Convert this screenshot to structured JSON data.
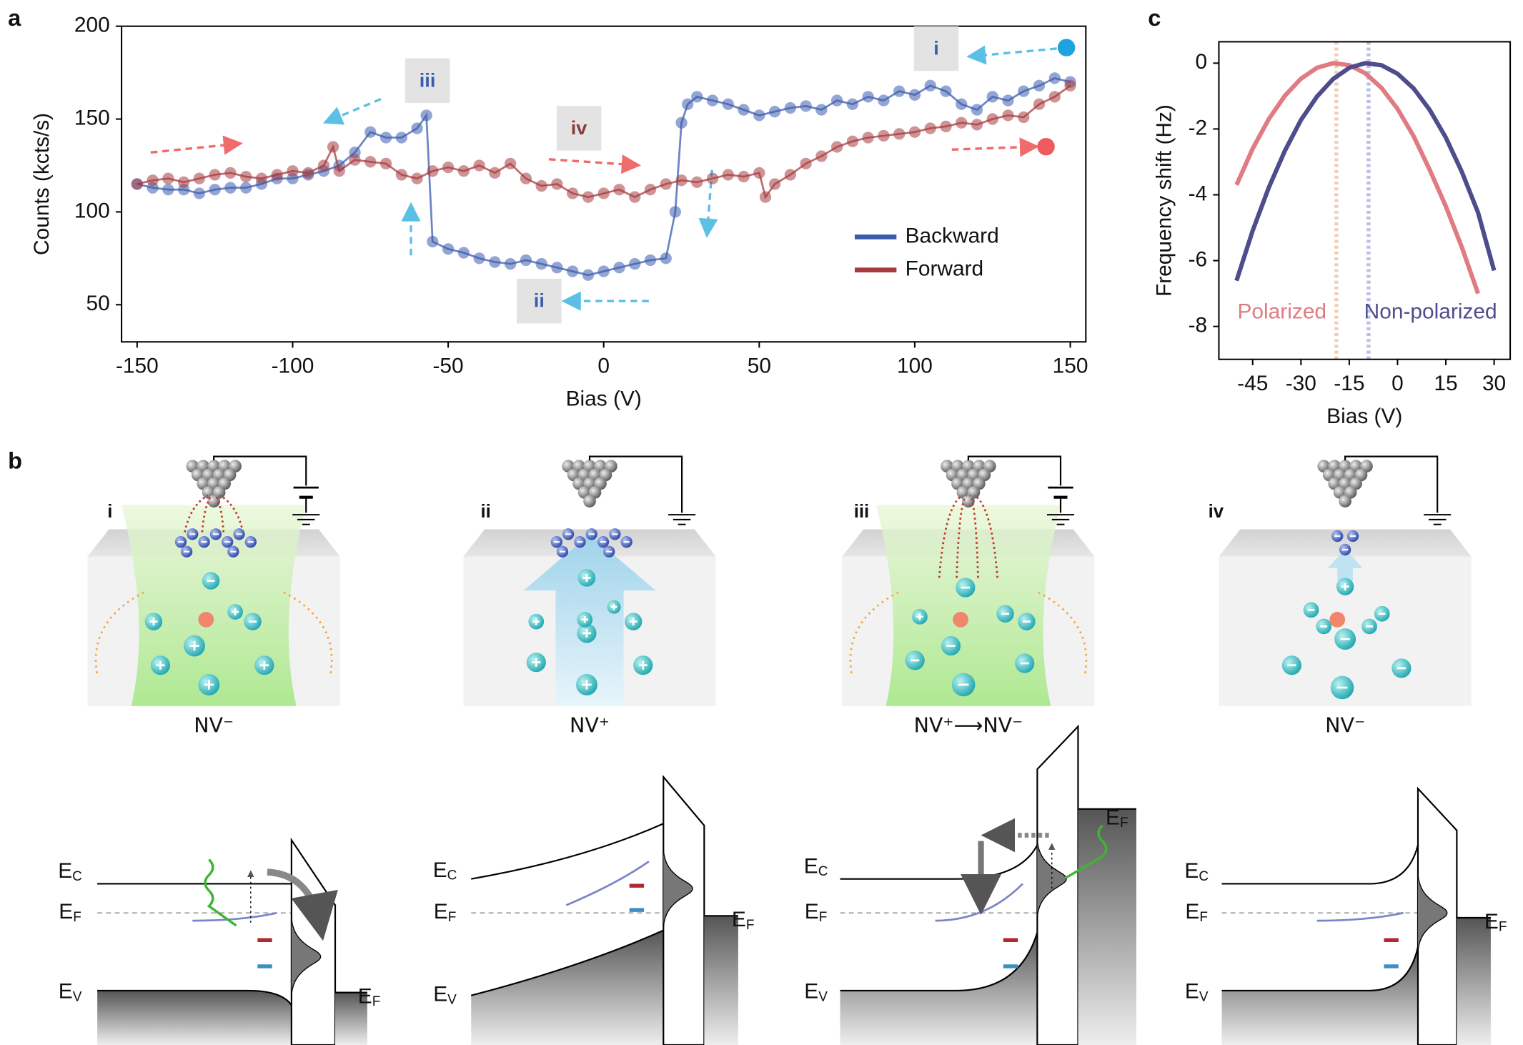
{
  "panels": {
    "a": "a",
    "b": "b",
    "c": "c"
  },
  "chart_data": [
    {
      "type": "line",
      "xlabel": "Bias (V)",
      "ylabel": "Counts (kcts/s)",
      "xlim": [
        -155,
        155
      ],
      "xticks": [
        -150,
        -100,
        -50,
        0,
        50,
        100,
        150
      ],
      "ylim": [
        30,
        200
      ],
      "yticks": [
        50,
        100,
        150,
        200
      ],
      "markers": true,
      "legend": "lower right",
      "annotations": [
        "i",
        "ii",
        "iii",
        "iv"
      ],
      "series": [
        {
          "name": "Backward",
          "color": "#3b5bad",
          "x": [
            150,
            145,
            140,
            135,
            130,
            125,
            120,
            115,
            110,
            105,
            100,
            95,
            90,
            85,
            80,
            75,
            70,
            65,
            60,
            55,
            50,
            45,
            40,
            35,
            30,
            27,
            25,
            23,
            20,
            15,
            10,
            5,
            0,
            -5,
            -10,
            -15,
            -20,
            -25,
            -30,
            -35,
            -40,
            -45,
            -50,
            -55,
            -57,
            -60,
            -65,
            -70,
            -75,
            -80,
            -85,
            -90,
            -95,
            -100,
            -105,
            -110,
            -115,
            -120,
            -125,
            -130,
            -135,
            -140,
            -145,
            -150
          ],
          "values": [
            170,
            172,
            168,
            165,
            160,
            162,
            155,
            158,
            165,
            168,
            163,
            165,
            160,
            162,
            158,
            160,
            155,
            157,
            156,
            154,
            152,
            155,
            158,
            160,
            162,
            158,
            148,
            100,
            75,
            74,
            72,
            70,
            68,
            66,
            68,
            70,
            72,
            74,
            72,
            73,
            75,
            78,
            80,
            84,
            152,
            145,
            140,
            140,
            143,
            132,
            125,
            122,
            120,
            118,
            118,
            115,
            113,
            113,
            112,
            110,
            112,
            112,
            113,
            115
          ]
        },
        {
          "name": "Forward",
          "color": "#a63a3e",
          "x": [
            -150,
            -145,
            -140,
            -135,
            -130,
            -125,
            -120,
            -115,
            -110,
            -105,
            -100,
            -95,
            -90,
            -87,
            -85,
            -80,
            -75,
            -70,
            -65,
            -60,
            -55,
            -50,
            -45,
            -40,
            -35,
            -30,
            -25,
            -20,
            -15,
            -10,
            -5,
            0,
            5,
            10,
            15,
            20,
            25,
            30,
            35,
            40,
            45,
            50,
            52,
            55,
            60,
            65,
            70,
            75,
            80,
            85,
            90,
            95,
            100,
            105,
            110,
            115,
            120,
            125,
            130,
            135,
            140,
            145,
            150
          ],
          "values": [
            115,
            117,
            118,
            116,
            118,
            120,
            121,
            119,
            118,
            120,
            122,
            121,
            125,
            135,
            122,
            128,
            127,
            126,
            120,
            118,
            122,
            124,
            122,
            125,
            121,
            126,
            118,
            114,
            115,
            110,
            108,
            110,
            112,
            108,
            112,
            115,
            117,
            116,
            118,
            120,
            119,
            121,
            108,
            115,
            120,
            126,
            130,
            135,
            138,
            140,
            141,
            142,
            143,
            145,
            146,
            148,
            147,
            150,
            152,
            151,
            158,
            162,
            168
          ]
        }
      ]
    },
    {
      "type": "line",
      "xlabel": "Bias (V)",
      "ylabel": "Frequency shift (Hz)",
      "xlim": [
        -55.5,
        35
      ],
      "xticks": [
        -45,
        -30,
        -15,
        0,
        15,
        30
      ],
      "ylim": [
        -9,
        0.65
      ],
      "yticks": [
        0,
        -2,
        -4,
        -6,
        -8
      ],
      "markers": false,
      "legend": "bottom",
      "vlines": [
        {
          "value": -19,
          "color": "#f2cdb5"
        },
        {
          "value": -9,
          "color": "#bcbce6"
        }
      ],
      "series": [
        {
          "name": "Polarized",
          "color": "#e07b82",
          "x": [
            -50,
            -45,
            -40,
            -35,
            -30,
            -25,
            -20,
            -15,
            -10,
            -5,
            0,
            5,
            10,
            15,
            20,
            25
          ],
          "values": [
            -3.7,
            -2.6,
            -1.7,
            -0.99,
            -0.47,
            -0.14,
            0,
            -0.06,
            -0.31,
            -0.75,
            -1.39,
            -2.22,
            -3.24,
            -4.35,
            -5.6,
            -7.0
          ]
        },
        {
          "name": "Non-polarized",
          "color": "#4d4d8c",
          "x": [
            -50,
            -45,
            -40,
            -35,
            -30,
            -25,
            -20,
            -15,
            -10,
            -5,
            0,
            5,
            10,
            15,
            20,
            25,
            30
          ],
          "values": [
            -6.61,
            -5.09,
            -3.78,
            -2.66,
            -1.73,
            -1.01,
            -0.48,
            -0.14,
            0,
            -0.06,
            -0.32,
            -0.77,
            -1.42,
            -2.26,
            -3.31,
            -4.54,
            -6.3
          ]
        }
      ]
    }
  ],
  "panel_b": {
    "columns": [
      {
        "roman": "i",
        "state": "NV⁻"
      },
      {
        "roman": "ii",
        "state": "NV⁺"
      },
      {
        "roman": "iii",
        "state": "NV⁺⟶NV⁻"
      },
      {
        "roman": "iv",
        "state": "NV⁻"
      }
    ],
    "bands": {
      "conduction": [
        "E",
        "C"
      ],
      "fermi": [
        "E",
        "F"
      ],
      "valence": [
        "E",
        "V"
      ]
    }
  }
}
